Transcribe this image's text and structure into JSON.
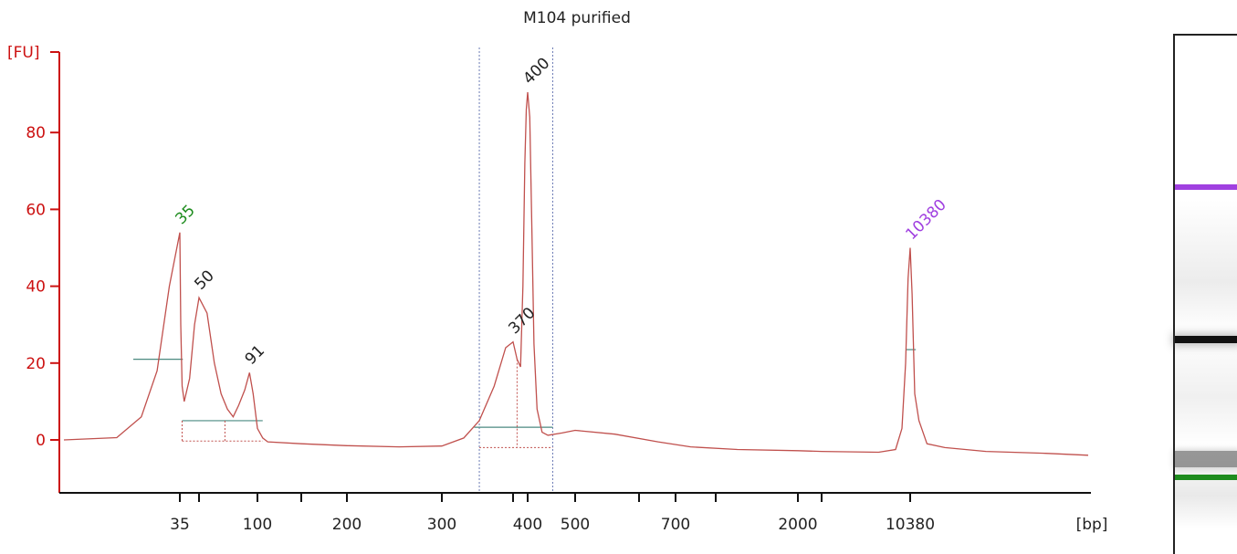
{
  "chart_data": {
    "type": "line",
    "title": "M104 purified",
    "ylabel": "[FU]",
    "xlabel": "[bp]",
    "ylim": [
      -13,
      102
    ],
    "y_ticks": [
      0,
      20,
      40,
      60,
      80
    ],
    "x_tick_labels": [
      "35",
      "100",
      "200",
      "300",
      "400",
      "500",
      "700",
      "2000",
      "10380"
    ],
    "x_tick_positions_bp": [
      35,
      50,
      100,
      150,
      200,
      300,
      370,
      400,
      500,
      600,
      700,
      1000,
      2000,
      5000,
      10380
    ],
    "series": [
      {
        "color": "#c0504d",
        "points": [
          [
            28,
            0
          ],
          [
            31,
            0.6
          ],
          [
            32.5,
            6
          ],
          [
            33.5,
            18
          ],
          [
            34.3,
            40
          ],
          [
            35,
            54
          ],
          [
            35.6,
            30
          ],
          [
            36.5,
            14
          ],
          [
            38,
            10
          ],
          [
            42,
            16
          ],
          [
            46,
            30
          ],
          [
            50,
            37
          ],
          [
            55,
            33
          ],
          [
            60,
            20
          ],
          [
            65,
            12
          ],
          [
            70,
            8
          ],
          [
            75,
            6
          ],
          [
            80,
            9
          ],
          [
            86,
            13
          ],
          [
            91,
            17.5
          ],
          [
            95,
            12
          ],
          [
            100,
            3
          ],
          [
            105,
            0.5
          ],
          [
            110,
            -0.5
          ],
          [
            150,
            -1
          ],
          [
            200,
            -1.5
          ],
          [
            250,
            -1.8
          ],
          [
            300,
            -1.6
          ],
          [
            320,
            0.5
          ],
          [
            335,
            5
          ],
          [
            350,
            14
          ],
          [
            362,
            24
          ],
          [
            370,
            25.5
          ],
          [
            378,
            21
          ],
          [
            385,
            19
          ],
          [
            390,
            40
          ],
          [
            394,
            72
          ],
          [
            397,
            86
          ],
          [
            400,
            90.5
          ],
          [
            404,
            84
          ],
          [
            408,
            55
          ],
          [
            412,
            25
          ],
          [
            418,
            8
          ],
          [
            428,
            2
          ],
          [
            440,
            1.2
          ],
          [
            470,
            1.8
          ],
          [
            500,
            2.5
          ],
          [
            560,
            1.5
          ],
          [
            650,
            -0.5
          ],
          [
            800,
            -1.8
          ],
          [
            1200,
            -2.5
          ],
          [
            2000,
            -2.8
          ],
          [
            5000,
            -3
          ],
          [
            8000,
            -3.2
          ],
          [
            9200,
            -2.5
          ],
          [
            9700,
            3
          ],
          [
            10000,
            20
          ],
          [
            10200,
            42
          ],
          [
            10380,
            50
          ],
          [
            10550,
            38
          ],
          [
            10800,
            12
          ],
          [
            11200,
            5
          ],
          [
            12000,
            -1
          ],
          [
            14000,
            -2
          ],
          [
            20000,
            -3
          ],
          [
            30000,
            -3.5
          ],
          [
            40000,
            -4
          ]
        ]
      }
    ],
    "peak_labels": [
      {
        "text": "35",
        "x": 35,
        "y": 54,
        "color": "#1e8c1e"
      },
      {
        "text": "50",
        "x": 50,
        "y": 37,
        "color": "#222222"
      },
      {
        "text": "91",
        "x": 91,
        "y": 17.5,
        "color": "#222222"
      },
      {
        "text": "370",
        "x": 370,
        "y": 25.5,
        "color": "#222222"
      },
      {
        "text": "400",
        "x": 400,
        "y": 90.5,
        "color": "#222222"
      },
      {
        "text": "10380",
        "x": 10380,
        "y": 50,
        "color": "#a040e0"
      }
    ],
    "region_markers_bp": [
      335,
      450
    ],
    "colors": {
      "trace": "#c0504d",
      "axis": "#cc1111",
      "lower_marker": "#1e8c1e",
      "upper_marker": "#a040e0"
    }
  },
  "gel": {
    "bands": [
      {
        "name": "upper-marker",
        "color": "#a040e0",
        "intensity": 1.0
      },
      {
        "name": "sample-400",
        "color": "#111111",
        "intensity": 1.0
      },
      {
        "name": "low-fragments",
        "color": "#555555",
        "intensity": 0.6
      },
      {
        "name": "lower-marker",
        "color": "#1e8c1e",
        "intensity": 1.0
      }
    ]
  }
}
